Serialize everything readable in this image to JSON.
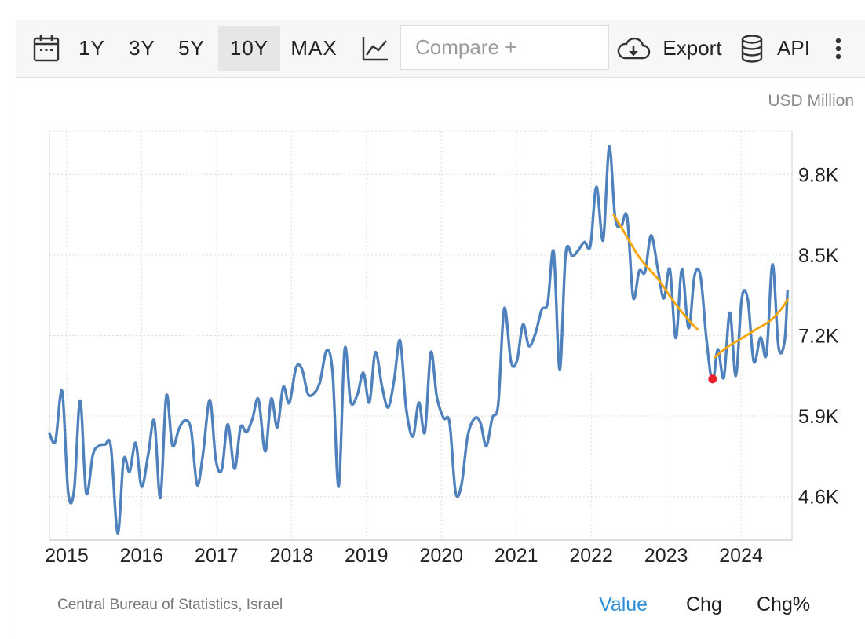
{
  "toolbar": {
    "ranges": [
      "1Y",
      "3Y",
      "5Y",
      "10Y",
      "MAX"
    ],
    "active_range": "10Y",
    "compare_placeholder": "Compare +",
    "export_label": "Export",
    "api_label": "API",
    "icons": [
      "calendar-icon",
      "line-chart-icon",
      "cloud-download-icon",
      "database-icon",
      "more-vertical-icon"
    ]
  },
  "chart_data": {
    "type": "line",
    "unit_label": "USD Million",
    "xlim": [
      2014.77,
      2024.68
    ],
    "ylim": [
      3900,
      10500
    ],
    "x_ticks": [
      2015,
      2016,
      2017,
      2018,
      2019,
      2020,
      2021,
      2022,
      2023,
      2024
    ],
    "x_tick_labels": [
      "2015",
      "2016",
      "2017",
      "2018",
      "2019",
      "2020",
      "2021",
      "2022",
      "2023",
      "2024"
    ],
    "y_ticks": [
      4600,
      5900,
      7200,
      8500,
      9800
    ],
    "y_tick_labels": [
      "4.6K",
      "5.9K",
      "7.2K",
      "8.5K",
      "9.8K"
    ],
    "grid": true,
    "series": [
      {
        "color": "#4f81bd",
        "points": [
          [
            2014.77,
            5620
          ],
          [
            2014.85,
            5500
          ],
          [
            2014.94,
            6300
          ],
          [
            2015.02,
            4660
          ],
          [
            2015.1,
            4720
          ],
          [
            2015.18,
            6150
          ],
          [
            2015.26,
            4660
          ],
          [
            2015.35,
            5280
          ],
          [
            2015.43,
            5420
          ],
          [
            2015.51,
            5440
          ],
          [
            2015.59,
            5400
          ],
          [
            2015.68,
            4010
          ],
          [
            2015.76,
            5200
          ],
          [
            2015.84,
            5000
          ],
          [
            2015.92,
            5470
          ],
          [
            2016.0,
            4760
          ],
          [
            2016.09,
            5300
          ],
          [
            2016.17,
            5820
          ],
          [
            2016.25,
            4580
          ],
          [
            2016.33,
            6230
          ],
          [
            2016.41,
            5430
          ],
          [
            2016.5,
            5700
          ],
          [
            2016.58,
            5830
          ],
          [
            2016.66,
            5680
          ],
          [
            2016.74,
            4790
          ],
          [
            2016.82,
            5300
          ],
          [
            2016.91,
            6160
          ],
          [
            2016.99,
            5200
          ],
          [
            2017.07,
            5040
          ],
          [
            2017.15,
            5770
          ],
          [
            2017.24,
            5050
          ],
          [
            2017.32,
            5720
          ],
          [
            2017.4,
            5640
          ],
          [
            2017.48,
            5860
          ],
          [
            2017.56,
            6170
          ],
          [
            2017.65,
            5330
          ],
          [
            2017.73,
            6180
          ],
          [
            2017.81,
            5720
          ],
          [
            2017.89,
            6370
          ],
          [
            2017.97,
            6110
          ],
          [
            2018.06,
            6680
          ],
          [
            2018.14,
            6660
          ],
          [
            2018.22,
            6260
          ],
          [
            2018.3,
            6270
          ],
          [
            2018.38,
            6450
          ],
          [
            2018.47,
            6960
          ],
          [
            2018.55,
            6590
          ],
          [
            2018.63,
            4760
          ],
          [
            2018.71,
            6980
          ],
          [
            2018.79,
            6130
          ],
          [
            2018.88,
            6250
          ],
          [
            2018.96,
            6600
          ],
          [
            2019.04,
            6120
          ],
          [
            2019.12,
            6930
          ],
          [
            2019.21,
            6370
          ],
          [
            2019.29,
            6040
          ],
          [
            2019.37,
            6480
          ],
          [
            2019.45,
            7120
          ],
          [
            2019.53,
            6030
          ],
          [
            2019.62,
            5570
          ],
          [
            2019.7,
            6120
          ],
          [
            2019.78,
            5640
          ],
          [
            2019.86,
            6930
          ],
          [
            2019.94,
            6210
          ],
          [
            2020.03,
            5870
          ],
          [
            2020.11,
            5790
          ],
          [
            2020.19,
            4670
          ],
          [
            2020.27,
            4800
          ],
          [
            2020.35,
            5570
          ],
          [
            2020.44,
            5860
          ],
          [
            2020.52,
            5800
          ],
          [
            2020.6,
            5420
          ],
          [
            2020.68,
            5870
          ],
          [
            2020.76,
            6100
          ],
          [
            2020.84,
            7640
          ],
          [
            2020.93,
            6780
          ],
          [
            2021.01,
            6800
          ],
          [
            2021.09,
            7380
          ],
          [
            2021.17,
            7030
          ],
          [
            2021.26,
            7250
          ],
          [
            2021.34,
            7620
          ],
          [
            2021.42,
            7730
          ],
          [
            2021.5,
            8550
          ],
          [
            2021.58,
            6650
          ],
          [
            2021.66,
            8520
          ],
          [
            2021.75,
            8480
          ],
          [
            2021.83,
            8580
          ],
          [
            2021.91,
            8710
          ],
          [
            2021.99,
            8650
          ],
          [
            2022.07,
            9600
          ],
          [
            2022.16,
            8740
          ],
          [
            2022.24,
            10250
          ],
          [
            2022.32,
            9100
          ],
          [
            2022.4,
            8970
          ],
          [
            2022.48,
            9110
          ],
          [
            2022.56,
            7820
          ],
          [
            2022.64,
            8240
          ],
          [
            2022.72,
            8230
          ],
          [
            2022.8,
            8820
          ],
          [
            2022.89,
            8270
          ],
          [
            2022.97,
            7800
          ],
          [
            2023.05,
            8270
          ],
          [
            2023.13,
            7160
          ],
          [
            2023.21,
            8270
          ],
          [
            2023.3,
            7320
          ],
          [
            2023.38,
            8170
          ],
          [
            2023.46,
            8150
          ],
          [
            2023.54,
            7120
          ],
          [
            2023.62,
            6450
          ],
          [
            2023.69,
            6980
          ],
          [
            2023.77,
            6520
          ],
          [
            2023.85,
            7570
          ],
          [
            2023.93,
            6550
          ],
          [
            2024.01,
            7800
          ],
          [
            2024.09,
            7780
          ],
          [
            2024.17,
            6780
          ],
          [
            2024.26,
            7170
          ],
          [
            2024.34,
            6900
          ],
          [
            2024.42,
            8350
          ],
          [
            2024.5,
            7020
          ],
          [
            2024.58,
            7100
          ],
          [
            2024.62,
            7920
          ]
        ]
      },
      {
        "color": "#f5a400",
        "points": [
          [
            2022.3,
            9150
          ],
          [
            2022.45,
            8850
          ],
          [
            2022.65,
            8450
          ],
          [
            2022.9,
            8100
          ],
          [
            2023.1,
            7750
          ],
          [
            2023.3,
            7450
          ],
          [
            2023.42,
            7300
          ]
        ]
      },
      {
        "color": "#f5a400",
        "points": [
          [
            2023.65,
            6850
          ],
          [
            2023.8,
            7000
          ],
          [
            2024.0,
            7150
          ],
          [
            2024.2,
            7300
          ],
          [
            2024.4,
            7450
          ],
          [
            2024.55,
            7650
          ],
          [
            2024.62,
            7780
          ]
        ]
      }
    ],
    "highlight_point": {
      "x": 2023.62,
      "y": 6500,
      "color": "#e8202a"
    }
  },
  "footer": {
    "source": "Central Bureau of Statistics, Israel",
    "modes": [
      "Value",
      "Chg",
      "Chg%"
    ],
    "active_mode": "Value",
    "active_color": "#2e8fd8"
  }
}
